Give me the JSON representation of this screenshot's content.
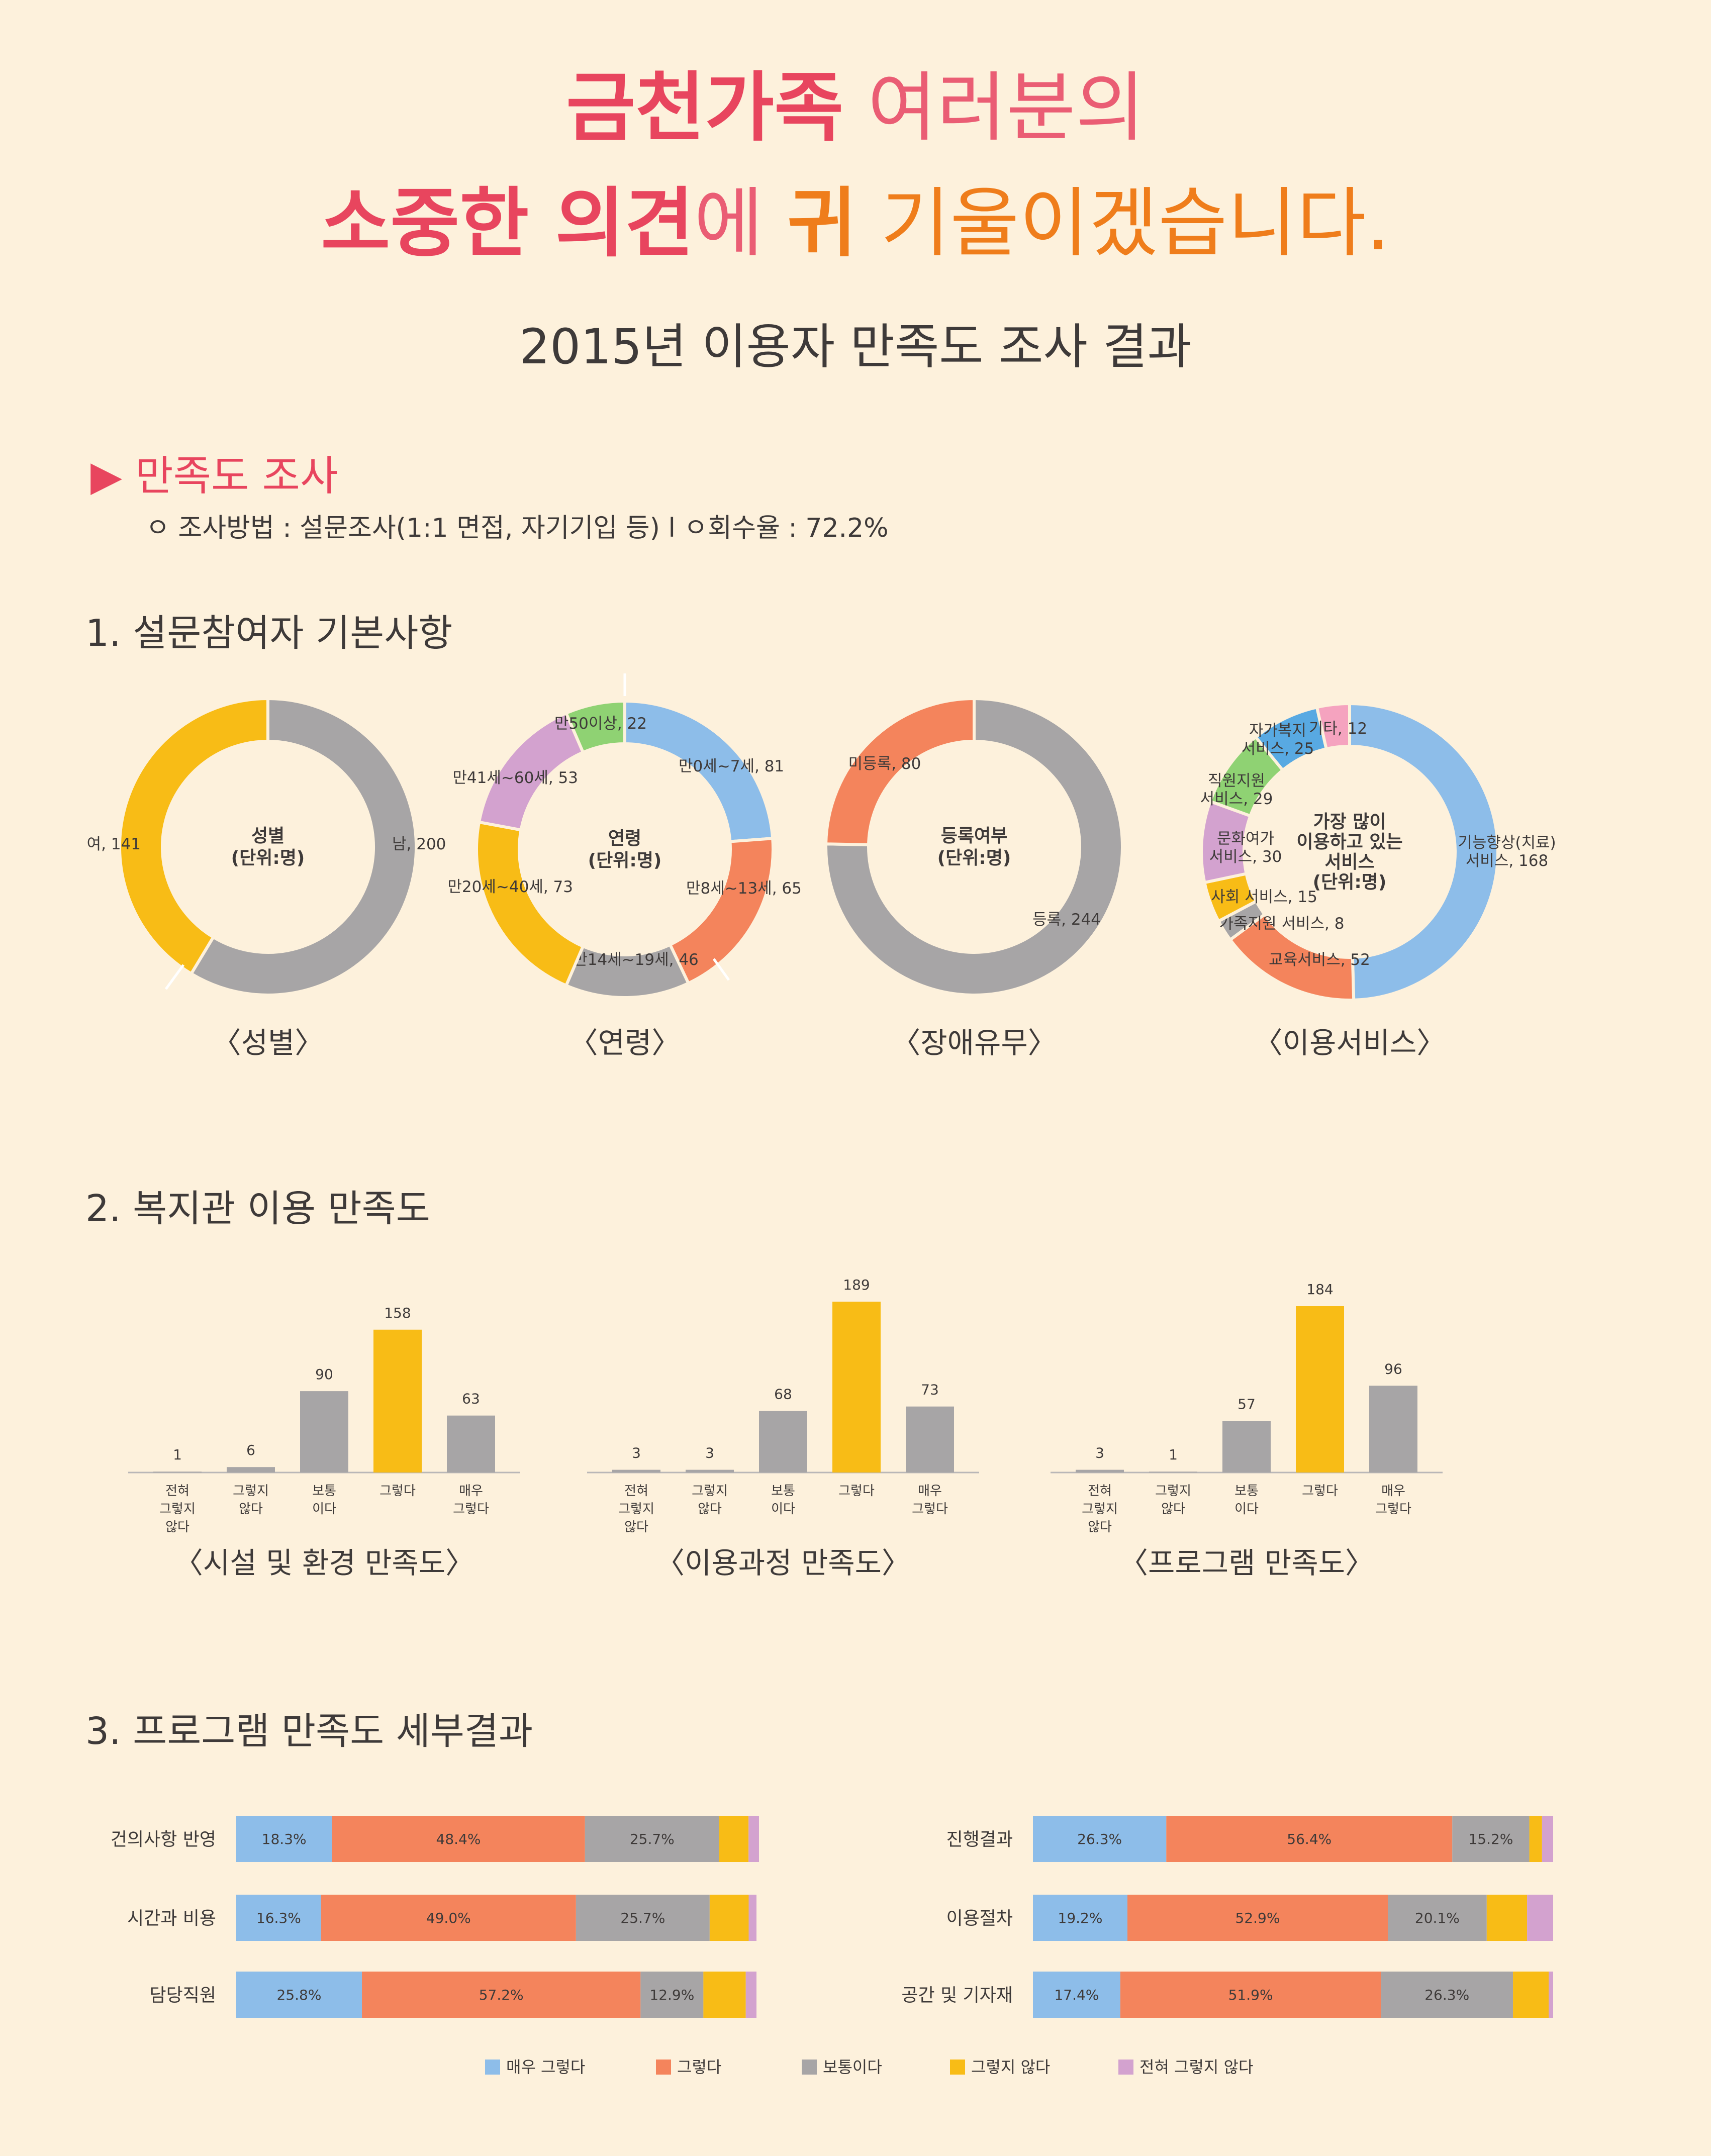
{
  "header": {
    "line1_bold": "금천가족",
    "line1_rest": " 여러분의",
    "line2_bold": "소중한 의견",
    "line2_mid": "에 ",
    "line2_ear": "귀",
    "line2_rest": " 기울이겠습니다.",
    "subtitle": "2015년 이용자 만족도 조사 결과"
  },
  "survey": {
    "heading": "▶ 만족도 조사",
    "method": "ㅇ 조사방법 : 설문조사(1:1 면접, 자기기입 등)  l  ㅇ회수율 : 72.2%"
  },
  "sections": {
    "s1": "1. 설문참여자 기본사항",
    "s2": "2. 복지관 이용 만족도",
    "s3": "3. 프로그램 만족도 세부결과"
  },
  "colors": {
    "gray": "#a7a5a6",
    "yellow": "#f8bc16",
    "blue": "#8dbde9",
    "orange": "#f4845c",
    "purple": "#d3a2cf",
    "green": "#8fd273",
    "pink": "#f5a3bf",
    "sky": "#58a9e2"
  },
  "chart_data": [
    {
      "type": "pie",
      "caption": "〈성별〉",
      "center": [
        "성별",
        "(단위:명)"
      ],
      "slices": [
        {
          "label": "남, 200",
          "value": 200,
          "color": "#a7a5a6"
        },
        {
          "label": "여, 141",
          "value": 141,
          "color": "#f8bc16"
        }
      ]
    },
    {
      "type": "pie",
      "caption": "〈연령〉",
      "center": [
        "연령",
        "(단위:명)"
      ],
      "slices": [
        {
          "label": "만0세~7세, 81",
          "value": 81,
          "color": "#8dbde9"
        },
        {
          "label": "만8세~13세, 65",
          "value": 65,
          "color": "#f4845c"
        },
        {
          "label": "만14세~19세, 46",
          "value": 46,
          "color": "#a7a5a6"
        },
        {
          "label": "만20세~40세, 73",
          "value": 73,
          "color": "#f8bc16"
        },
        {
          "label": "만41세~60세, 53",
          "value": 53,
          "color": "#d3a2cf"
        },
        {
          "label": "만50이상, 22",
          "value": 22,
          "color": "#8fd273"
        }
      ]
    },
    {
      "type": "pie",
      "caption": "〈장애유무〉",
      "center": [
        "등록여부",
        "(단위:명)"
      ],
      "slices": [
        {
          "label": "등록, 244",
          "value": 244,
          "color": "#a7a5a6"
        },
        {
          "label": "미등록, 80",
          "value": 80,
          "color": "#f4845c"
        }
      ]
    },
    {
      "type": "pie",
      "caption": "〈이용서비스〉",
      "center": [
        "가장 많이",
        "이용하고 있는",
        "서비스",
        "(단위:명)"
      ],
      "slices": [
        {
          "label": "기능향상(치료)\n서비스, 168",
          "value": 168,
          "color": "#8dbde9"
        },
        {
          "label": "교육서비스, 52",
          "value": 52,
          "color": "#f4845c"
        },
        {
          "label": "가족지원 서비스, 8",
          "value": 8,
          "color": "#a7a5a6"
        },
        {
          "label": "사회 서비스, 15",
          "value": 15,
          "color": "#f8bc16"
        },
        {
          "label": "문화여가\n서비스, 30",
          "value": 30,
          "color": "#d3a2cf"
        },
        {
          "label": "직원지원\n서비스, 29",
          "value": 29,
          "color": "#8fd273"
        },
        {
          "label": "자가복지\n서비스, 25",
          "value": 25,
          "color": "#58a9e2"
        },
        {
          "label": "기타, 12",
          "value": 12,
          "color": "#f5a3bf"
        }
      ]
    },
    {
      "type": "bar",
      "caption": "〈시설 및 환경 만족도〉",
      "categories": [
        "전혀\n그렇지\n않다",
        "그렇지\n않다",
        "보통\n이다",
        "그렇다",
        "매우\n그렇다"
      ],
      "values": [
        1,
        6,
        90,
        158,
        63
      ],
      "highlight": 3,
      "ylim": [
        0,
        200
      ]
    },
    {
      "type": "bar",
      "caption": "〈이용과정 만족도〉",
      "categories": [
        "전혀\n그렇지\n않다",
        "그렇지\n않다",
        "보통\n이다",
        "그렇다",
        "매우\n그렇다"
      ],
      "values": [
        3,
        3,
        68,
        189,
        73
      ],
      "highlight": 3,
      "ylim": [
        0,
        200
      ]
    },
    {
      "type": "bar",
      "caption": "〈프로그램 만족도〉",
      "categories": [
        "전혀\n그렇지\n않다",
        "그렇지\n않다",
        "보통\n이다",
        "그렇다",
        "매우\n그렇다"
      ],
      "values": [
        3,
        1,
        57,
        184,
        96
      ],
      "highlight": 3,
      "ylim": [
        0,
        200
      ]
    },
    {
      "type": "bar",
      "stacked": true,
      "orientation": "horizontal",
      "legend": [
        "매우 그렇다",
        "그렇다",
        "보통이다",
        "그렇지 않다",
        "전혀 그렇지 않다"
      ],
      "legend_colors": [
        "#8dbde9",
        "#f4845c",
        "#a7a5a6",
        "#f8bc16",
        "#d3a2cf"
      ],
      "rows": [
        {
          "label": "건의사항 반영",
          "values": [
            18.3,
            48.4,
            25.7,
            5.6,
            2.0
          ],
          "printed": [
            "18.3%",
            "48.4%",
            "25.7%",
            "",
            ""
          ]
        },
        {
          "label": "시간과 비용",
          "values": [
            16.3,
            49.0,
            25.7,
            7.5,
            1.5
          ],
          "printed": [
            "16.3%",
            "49.0%",
            "25.7%",
            "",
            ""
          ]
        },
        {
          "label": "담당직원",
          "values": [
            25.8,
            57.2,
            12.9,
            8.7,
            2.2
          ],
          "printed": [
            "25.8%",
            "57.2%",
            "12.9%",
            "",
            ""
          ]
        },
        {
          "label": "진행결과",
          "values": [
            26.3,
            56.4,
            15.2,
            2.5,
            2.2
          ],
          "printed": [
            "26.3%",
            "56.4%",
            "15.2%",
            "",
            ""
          ]
        },
        {
          "label": "이용절차",
          "values": [
            19.2,
            52.9,
            20.1,
            8.2,
            5.3
          ],
          "printed": [
            "19.2%",
            "52.9%",
            "20.1%",
            "",
            ""
          ]
        },
        {
          "label": "공간 및 기자재",
          "values": [
            17.4,
            51.9,
            26.3,
            7.1,
            0.9
          ],
          "printed": [
            "17.4%",
            "51.9%",
            "26.3%",
            "",
            ""
          ]
        }
      ]
    }
  ]
}
